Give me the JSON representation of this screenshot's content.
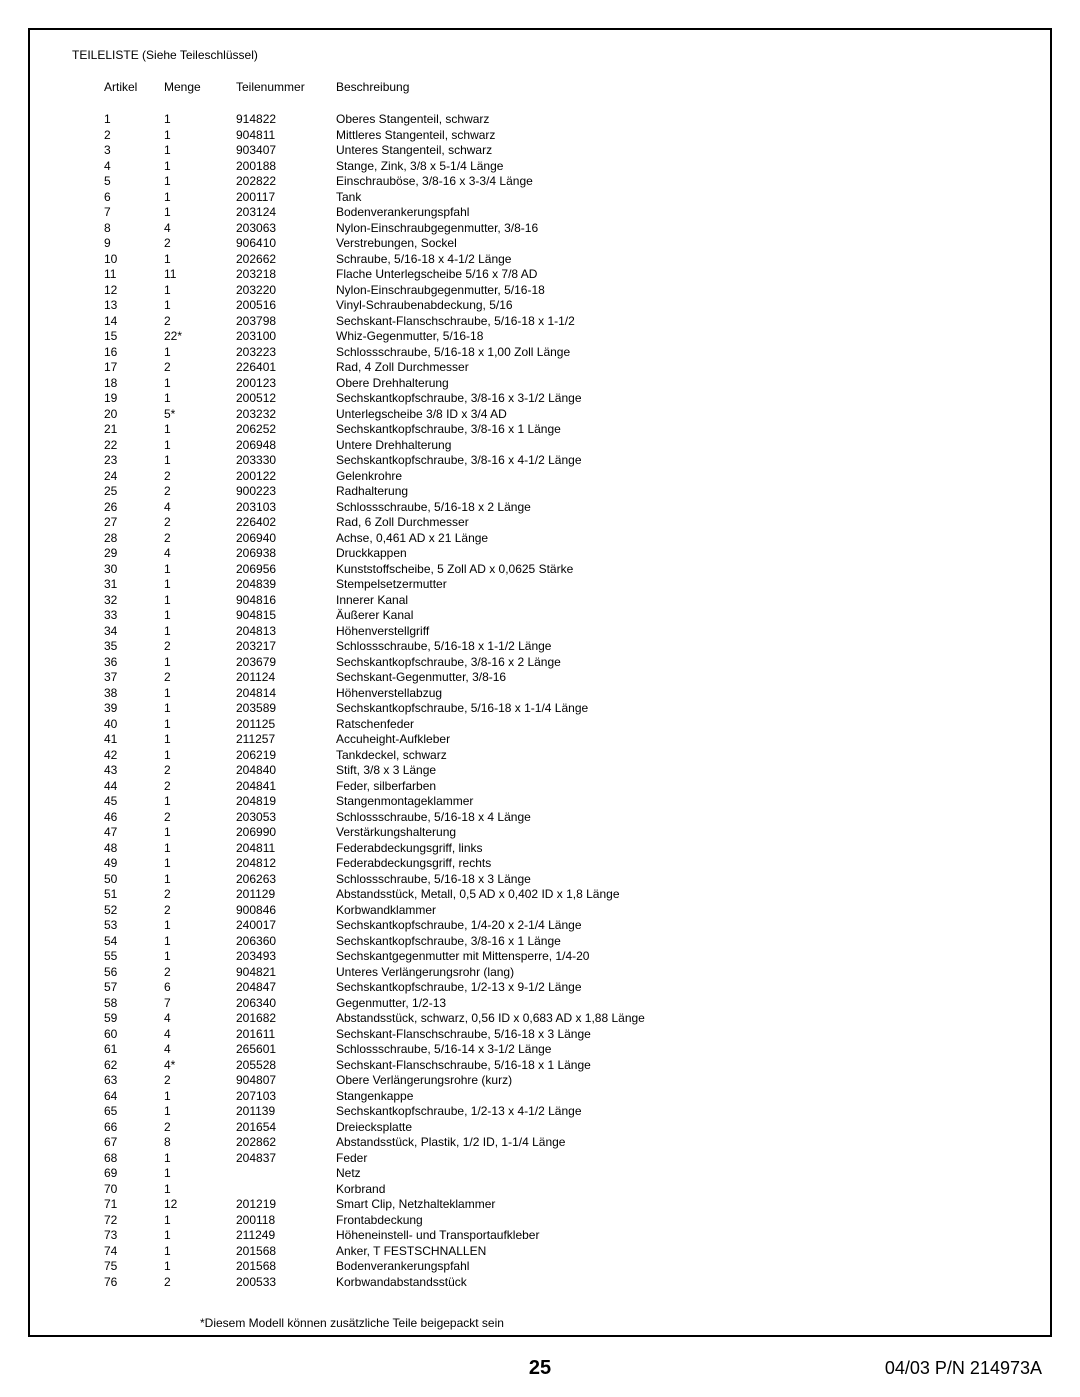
{
  "section_title": "TEILELISTE (Siehe Teileschlüssel)",
  "headers": {
    "artikel": "Artikel",
    "menge": "Menge",
    "teilenummer": "Teilenummer",
    "beschreibung": "Beschreibung"
  },
  "rows": [
    {
      "a": "1",
      "m": "1",
      "t": "914822",
      "b": "Oberes Stangenteil, schwarz"
    },
    {
      "a": "2",
      "m": "1",
      "t": "904811",
      "b": "Mittleres Stangenteil, schwarz"
    },
    {
      "a": "3",
      "m": "1",
      "t": "903407",
      "b": "Unteres Stangenteil, schwarz"
    },
    {
      "a": "4",
      "m": "1",
      "t": "200188",
      "b": "Stange, Zink, 3/8 x 5-1/4 Länge"
    },
    {
      "a": "5",
      "m": "1",
      "t": "202822",
      "b": "Einschrauböse, 3/8-16 x 3-3/4 Länge"
    },
    {
      "a": "6",
      "m": "1",
      "t": "200117",
      "b": "Tank"
    },
    {
      "a": "7",
      "m": "1",
      "t": "203124",
      "b": "Bodenverankerungspfahl"
    },
    {
      "a": "8",
      "m": "4",
      "t": "203063",
      "b": "Nylon-Einschraubgegenmutter, 3/8-16"
    },
    {
      "a": "9",
      "m": "2",
      "t": "906410",
      "b": "Verstrebungen, Sockel"
    },
    {
      "a": "10",
      "m": "1",
      "t": "202662",
      "b": "Schraube, 5/16-18 x 4-1/2 Länge"
    },
    {
      "a": "11",
      "m": "11",
      "t": "203218",
      "b": "Flache Unterlegscheibe 5/16 x 7/8 AD"
    },
    {
      "a": "12",
      "m": "1",
      "t": "203220",
      "b": "Nylon-Einschraubgegenmutter, 5/16-18"
    },
    {
      "a": "13",
      "m": "1",
      "t": "200516",
      "b": "Vinyl-Schraubenabdeckung, 5/16"
    },
    {
      "a": "14",
      "m": "2",
      "t": "203798",
      "b": "Sechskant-Flanschschraube, 5/16-18 x 1-1/2"
    },
    {
      "a": "15",
      "m": "22*",
      "t": "203100",
      "b": "Whiz-Gegenmutter, 5/16-18"
    },
    {
      "a": "16",
      "m": "1",
      "t": "203223",
      "b": "Schlossschraube, 5/16-18 x 1,00 Zoll Länge"
    },
    {
      "a": "17",
      "m": "2",
      "t": "226401",
      "b": "Rad, 4 Zoll Durchmesser"
    },
    {
      "a": "18",
      "m": "1",
      "t": "200123",
      "b": "Obere Drehhalterung"
    },
    {
      "a": "19",
      "m": "1",
      "t": "200512",
      "b": "Sechskantkopfschraube, 3/8-16 x 3-1/2 Länge"
    },
    {
      "a": "20",
      "m": "5*",
      "t": "203232",
      "b": "Unterlegscheibe 3/8 ID x 3/4 AD"
    },
    {
      "a": "21",
      "m": "1",
      "t": "206252",
      "b": "Sechskantkopfschraube, 3/8-16 x 1 Länge"
    },
    {
      "a": "22",
      "m": "1",
      "t": "206948",
      "b": "Untere Drehhalterung"
    },
    {
      "a": "23",
      "m": "1",
      "t": "203330",
      "b": "Sechskantkopfschraube, 3/8-16 x 4-1/2 Länge"
    },
    {
      "a": "24",
      "m": "2",
      "t": "200122",
      "b": "Gelenkrohre"
    },
    {
      "a": "25",
      "m": "2",
      "t": "900223",
      "b": "Radhalterung"
    },
    {
      "a": "26",
      "m": "4",
      "t": "203103",
      "b": "Schlossschraube, 5/16-18 x 2 Länge"
    },
    {
      "a": "27",
      "m": "2",
      "t": "226402",
      "b": "Rad, 6 Zoll Durchmesser"
    },
    {
      "a": "28",
      "m": "2",
      "t": "206940",
      "b": "Achse, 0,461 AD x 21 Länge"
    },
    {
      "a": "29",
      "m": "4",
      "t": "206938",
      "b": "Druckkappen"
    },
    {
      "a": "30",
      "m": "1",
      "t": "206956",
      "b": "Kunststoffscheibe, 5 Zoll AD x 0,0625 Stärke"
    },
    {
      "a": "31",
      "m": "1",
      "t": "204839",
      "b": "Stempelsetzermutter"
    },
    {
      "a": "32",
      "m": "1",
      "t": "904816",
      "b": "Innerer Kanal"
    },
    {
      "a": "33",
      "m": "1",
      "t": "904815",
      "b": "Äußerer Kanal"
    },
    {
      "a": "34",
      "m": "1",
      "t": "204813",
      "b": "Höhenverstellgriff"
    },
    {
      "a": "35",
      "m": "2",
      "t": "203217",
      "b": "Schlossschraube, 5/16-18 x 1-1/2 Länge"
    },
    {
      "a": "36",
      "m": "1",
      "t": "203679",
      "b": "Sechskantkopfschraube, 3/8-16 x 2 Länge"
    },
    {
      "a": "37",
      "m": "2",
      "t": "201124",
      "b": "Sechskant-Gegenmutter, 3/8-16"
    },
    {
      "a": "38",
      "m": "1",
      "t": "204814",
      "b": "Höhenverstellabzug"
    },
    {
      "a": "39",
      "m": "1",
      "t": "203589",
      "b": "Sechskantkopfschraube, 5/16-18 x 1-1/4 Länge"
    },
    {
      "a": "40",
      "m": "1",
      "t": "201125",
      "b": "Ratschenfeder"
    },
    {
      "a": "41",
      "m": "1",
      "t": "211257",
      "b": "Accuheight-Aufkleber"
    },
    {
      "a": "42",
      "m": "1",
      "t": "206219",
      "b": "Tankdeckel, schwarz"
    },
    {
      "a": "43",
      "m": "2",
      "t": "204840",
      "b": "Stift, 3/8 x 3 Länge"
    },
    {
      "a": "44",
      "m": "2",
      "t": "204841",
      "b": "Feder, silberfarben"
    },
    {
      "a": "45",
      "m": "1",
      "t": "204819",
      "b": "Stangenmontageklammer"
    },
    {
      "a": "46",
      "m": "2",
      "t": "203053",
      "b": "Schlossschraube, 5/16-18 x 4 Länge"
    },
    {
      "a": "47",
      "m": "1",
      "t": "206990",
      "b": "Verstärkungshalterung"
    },
    {
      "a": "48",
      "m": "1",
      "t": "204811",
      "b": "Federabdeckungsgriff, links"
    },
    {
      "a": "49",
      "m": "1",
      "t": "204812",
      "b": "Federabdeckungsgriff, rechts"
    },
    {
      "a": "50",
      "m": "1",
      "t": "206263",
      "b": "Schlossschraube, 5/16-18 x 3 Länge"
    },
    {
      "a": "51",
      "m": "2",
      "t": "201129",
      "b": "Abstandsstück, Metall, 0,5 AD x 0,402 ID x 1,8 Länge"
    },
    {
      "a": "52",
      "m": "2",
      "t": "900846",
      "b": "Korbwandklammer"
    },
    {
      "a": "53",
      "m": "1",
      "t": "240017",
      "b": "Sechskantkopfschraube, 1/4-20 x 2-1/4 Länge"
    },
    {
      "a": "54",
      "m": "1",
      "t": "206360",
      "b": "Sechskantkopfschraube, 3/8-16 x 1 Länge"
    },
    {
      "a": "55",
      "m": "1",
      "t": "203493",
      "b": "Sechskantgegenmutter mit Mittensperre, 1/4-20"
    },
    {
      "a": "56",
      "m": "2",
      "t": "904821",
      "b": "Unteres Verlängerungsrohr (lang)"
    },
    {
      "a": "57",
      "m": "6",
      "t": "204847",
      "b": "Sechskantkopfschraube, 1/2-13 x 9-1/2 Länge"
    },
    {
      "a": "58",
      "m": "7",
      "t": "206340",
      "b": "Gegenmutter, 1/2-13"
    },
    {
      "a": "59",
      "m": "4",
      "t": "201682",
      "b": "Abstandsstück, schwarz, 0,56 ID x 0,683 AD x 1,88 Länge"
    },
    {
      "a": "60",
      "m": "4",
      "t": "201611",
      "b": "Sechskant-Flanschschraube, 5/16-18 x 3 Länge"
    },
    {
      "a": "61",
      "m": "4",
      "t": "265601",
      "b": "Schlossschraube, 5/16-14 x 3-1/2 Länge"
    },
    {
      "a": "62",
      "m": "4*",
      "t": "205528",
      "b": "Sechskant-Flanschschraube, 5/16-18 x 1 Länge"
    },
    {
      "a": "63",
      "m": "2",
      "t": "904807",
      "b": "Obere Verlängerungsrohre (kurz)"
    },
    {
      "a": "64",
      "m": "1",
      "t": "207103",
      "b": "Stangenkappe"
    },
    {
      "a": "65",
      "m": "1",
      "t": "201139",
      "b": "Sechskantkopfschraube, 1/2-13 x 4-1/2 Länge"
    },
    {
      "a": "66",
      "m": "2",
      "t": "201654",
      "b": "Dreiecksplatte"
    },
    {
      "a": "67",
      "m": "8",
      "t": "202862",
      "b": "Abstandsstück, Plastik, 1/2 ID, 1-1/4 Länge"
    },
    {
      "a": "68",
      "m": "1",
      "t": "204837",
      "b": "Feder"
    },
    {
      "a": "69",
      "m": "1",
      "t": "",
      "b": "Netz"
    },
    {
      "a": "70",
      "m": "1",
      "t": "",
      "b": "Korbrand"
    },
    {
      "a": "71",
      "m": "12",
      "t": "201219",
      "b": "Smart Clip, Netzhalteklammer"
    },
    {
      "a": "72",
      "m": "1",
      "t": "200118",
      "b": "Frontabdeckung"
    },
    {
      "a": "73",
      "m": "1",
      "t": "211249",
      "b": "Höheneinstell- und Transportaufkleber"
    },
    {
      "a": "74",
      "m": "1",
      "t": "201568",
      "b": "Anker, T FESTSCHNALLEN"
    },
    {
      "a": "75",
      "m": "1",
      "t": "201568",
      "b": "Bodenverankerungspfahl"
    },
    {
      "a": "76",
      "m": "2",
      "t": "200533",
      "b": "Korbwandabstandsstück"
    }
  ],
  "footnote": "*Diesem Modell können zusätzliche Teile beigepackt sein",
  "footer": {
    "page_number": "25",
    "pn": "04/03   P/N 214973A"
  }
}
